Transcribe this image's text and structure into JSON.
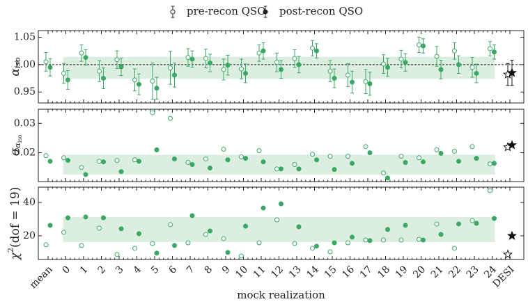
{
  "chart_data": [
    {
      "type": "scatter",
      "y_label": {
        "symbol": "α",
        "subscript": "iso"
      },
      "ylim": [
        0.93,
        1.062
      ],
      "yticks": [
        {
          "value": 0.95,
          "label": "0.95"
        },
        {
          "value": 1.0,
          "label": "1.00"
        },
        {
          "value": 1.05,
          "label": "1.05"
        }
      ],
      "hline": 1.0,
      "band": [
        0.974,
        1.014
      ],
      "band_color": "#dbeee0",
      "series": [
        {
          "name": "pre-recon QSO",
          "color": "#3aa864",
          "filled": false,
          "values": [
            1.005,
            0.984,
            1.021,
            0.988,
            1.009,
            0.972,
            0.97,
            0.994,
            1.013,
            1.011,
            0.991,
            0.992,
            1.021,
            1.004,
            1.011,
            1.03,
            0.988,
            0.981,
            0.969,
            1.001,
            1.01,
            1.036,
            1.015,
            1.025,
            0.995,
            1.029,
            0.982
          ],
          "errors": [
            0.017,
            0.018,
            0.015,
            0.019,
            0.016,
            0.02,
            0.033,
            0.03,
            0.016,
            0.017,
            0.019,
            0.018,
            0.015,
            0.017,
            0.016,
            0.014,
            0.019,
            0.021,
            0.022,
            0.017,
            0.016,
            0.014,
            0.018,
            0.015,
            0.018,
            0.013,
            0.02
          ]
        },
        {
          "name": "post-recon QSO",
          "color": "#3aa864",
          "filled": true,
          "values": [
            0.995,
            0.972,
            1.013,
            0.975,
            0.996,
            0.964,
            0.957,
            0.981,
            1.01,
            1.003,
            0.999,
            0.984,
            1.025,
            0.991,
            1.0,
            1.025,
            0.975,
            0.968,
            0.965,
            0.995,
            1.004,
            1.034,
            0.991,
            1.0,
            0.984,
            1.023,
            0.985
          ],
          "errors": [
            0.016,
            0.017,
            0.014,
            0.019,
            0.016,
            0.019,
            0.02,
            0.022,
            0.015,
            0.016,
            0.018,
            0.017,
            0.015,
            0.016,
            0.015,
            0.013,
            0.017,
            0.02,
            0.021,
            0.016,
            0.016,
            0.013,
            0.017,
            0.016,
            0.017,
            0.013,
            0.023
          ]
        }
      ]
    },
    {
      "type": "scatter",
      "y_label": {
        "symbol": "σ",
        "subscript": "α",
        "subsubscript": "iso"
      },
      "ylim": [
        0.0102,
        0.0348
      ],
      "yticks": [
        0.02,
        0.03
      ],
      "band": [
        0.0126,
        0.0193
      ],
      "band_color": "#dbeee0",
      "series": [
        {
          "name": "pre-recon QSO",
          "color": "#3aa864",
          "filled": false,
          "values": [
            0.019,
            0.0183,
            0.015,
            0.0171,
            0.0174,
            0.0176,
            0.0336,
            0.0317,
            0.0167,
            0.0179,
            0.0212,
            0.0186,
            0.0207,
            0.0145,
            0.016,
            0.0195,
            0.0188,
            0.0188,
            0.0221,
            0.0131,
            0.0188,
            0.0183,
            0.021,
            0.0205,
            0.0221,
            0.0162,
            0.0219
          ]
        },
        {
          "name": "post-recon QSO",
          "color": "#3aa864",
          "filled": true,
          "values": [
            0.0171,
            0.0174,
            0.0126,
            0.0169,
            0.0136,
            0.0171,
            0.021,
            0.0179,
            0.016,
            0.0148,
            0.0176,
            0.0181,
            0.0169,
            0.0145,
            0.0145,
            0.0176,
            0.0143,
            0.0164,
            0.02,
            0.0114,
            0.0167,
            0.0169,
            0.0198,
            0.0171,
            0.0181,
            0.0164,
            0.0226
          ]
        }
      ]
    },
    {
      "type": "scatter",
      "y_label": {
        "symbol": "χ",
        "superscript": "2",
        "rest": "(dof = 19)"
      },
      "x_label": "mock realization",
      "categories": [
        "mean",
        "0",
        "1",
        "2",
        "3",
        "4",
        "5",
        "6",
        "7",
        "8",
        "9",
        "10",
        "11",
        "12",
        "13",
        "14",
        "15",
        "16",
        "17",
        "18",
        "19",
        "20",
        "21",
        "22",
        "23",
        "24",
        "DESI"
      ],
      "ylim": [
        5.8,
        49.2
      ],
      "yticks": [
        20,
        40
      ],
      "band": [
        16.3,
        31.3
      ],
      "band_color": "#dbeee0",
      "series": [
        {
          "name": "pre-recon QSO",
          "color": "#3aa864",
          "filled": false,
          "values": [
            14.6,
            22.1,
            14.2,
            24.6,
            8.8,
            12.5,
            15.4,
            26.7,
            15.8,
            20.8,
            18.3,
            7.9,
            15.8,
            29.6,
            15.4,
            12.5,
            10.4,
            15.8,
            17.5,
            17.5,
            17.5,
            17.9,
            27.1,
            12.5,
            29.2,
            47.1,
            8.8
          ]
        },
        {
          "name": "post-recon QSO",
          "color": "#3aa864",
          "filled": true,
          "values": [
            26.3,
            30.8,
            31.3,
            30.8,
            24.2,
            21.3,
            9.6,
            14.2,
            32.1,
            22.9,
            10.0,
            25.8,
            36.7,
            39.2,
            25.4,
            13.8,
            15.8,
            19.2,
            17.1,
            23.8,
            26.3,
            17.5,
            20.8,
            27.1,
            27.5,
            30.4,
            20.0
          ]
        }
      ]
    }
  ]
}
